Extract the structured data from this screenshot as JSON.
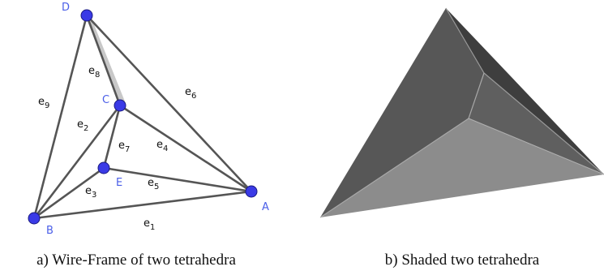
{
  "figure": {
    "nodes": [
      {
        "label": "A"
      },
      {
        "label": "B"
      },
      {
        "label": "C"
      },
      {
        "label": "D"
      },
      {
        "label": "E"
      }
    ],
    "edges": [
      {
        "label": "e",
        "subscript": "1"
      },
      {
        "label": "e",
        "subscript": "2"
      },
      {
        "label": "e",
        "subscript": "3"
      },
      {
        "label": "e",
        "subscript": "4"
      },
      {
        "label": "e",
        "subscript": "5"
      },
      {
        "label": "e",
        "subscript": "6"
      },
      {
        "label": "e",
        "subscript": "7"
      },
      {
        "label": "e",
        "subscript": "8"
      },
      {
        "label": "e",
        "subscript": "9"
      }
    ],
    "captions": [
      "a) Wire-Frame of two tetrahedra",
      "b) Shaded two tetrahedra"
    ]
  }
}
